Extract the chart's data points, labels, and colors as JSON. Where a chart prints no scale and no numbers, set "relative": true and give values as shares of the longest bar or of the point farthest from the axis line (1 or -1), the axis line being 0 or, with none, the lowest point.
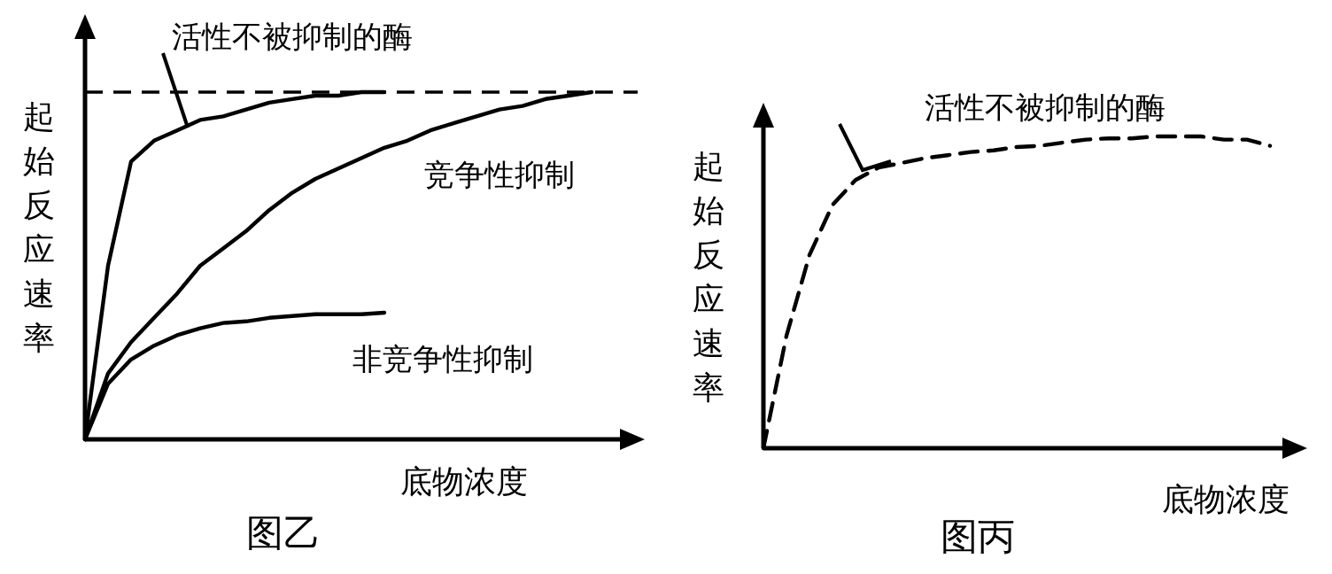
{
  "chart_data": [
    {
      "type": "line",
      "relative": true,
      "title": "图乙",
      "xlabel": "底物浓度",
      "ylabel": "起始反应速率",
      "grid": false,
      "marker": "none",
      "categories": [
        null,
        null,
        null,
        null,
        null,
        null,
        null,
        null,
        null,
        null,
        null,
        null,
        null,
        null,
        null,
        null,
        null,
        null,
        null,
        null,
        null,
        null,
        null,
        null,
        null
      ],
      "series": [
        {
          "name": "活性不被抑制的酶",
          "color": "#000000",
          "line_style": "solid",
          "values": [
            0,
            0.5,
            0.8,
            0.86,
            0.89,
            0.92,
            0.93,
            0.95,
            0.97,
            0.98,
            0.99,
            0.99,
            1,
            1,
            null,
            null,
            null,
            null,
            null,
            null,
            null,
            null,
            null,
            null,
            null
          ]
        },
        {
          "name": "竞争性抑制",
          "color": "#000000",
          "line_style": "solid",
          "values": [
            0,
            0.19,
            0.28,
            0.35,
            0.42,
            0.5,
            0.55,
            0.6,
            0.66,
            0.71,
            0.75,
            0.78,
            0.81,
            0.84,
            0.86,
            0.89,
            0.91,
            0.93,
            0.95,
            0.96,
            0.98,
            0.99,
            1,
            null,
            null
          ]
        },
        {
          "name": "非竞争性抑制",
          "color": "#000000",
          "line_style": "solid",
          "values": [
            0,
            0.16,
            0.23,
            0.27,
            0.3,
            0.32,
            0.335,
            0.34,
            0.35,
            0.355,
            0.36,
            0.36,
            0.36,
            0.365,
            null,
            null,
            null,
            null,
            null,
            null,
            null,
            null,
            null,
            null,
            null
          ]
        }
      ],
      "ref_lines": [
        {
          "axis": "y",
          "value": 1,
          "line_style": "dashed",
          "color": "#000000"
        }
      ]
    },
    {
      "type": "line",
      "relative": true,
      "title": "图丙",
      "xlabel": "底物浓度",
      "ylabel": "起始反应速率",
      "grid": false,
      "marker": "none",
      "categories": [
        null,
        null,
        null,
        null,
        null,
        null,
        null,
        null,
        null,
        null,
        null,
        null,
        null,
        null,
        null,
        null,
        null,
        null,
        null,
        null,
        null,
        null,
        null
      ],
      "series": [
        {
          "name": "活性不被抑制的酶",
          "color": "#000000",
          "line_style": "dashed",
          "values": [
            0,
            0.36,
            0.62,
            0.78,
            0.86,
            0.9,
            0.915,
            0.93,
            0.94,
            0.95,
            0.955,
            0.966,
            0.97,
            0.98,
            0.99,
            0.994,
            0.994,
            1,
            1,
            1,
            0.99,
            0.99,
            0.97
          ]
        }
      ]
    }
  ]
}
